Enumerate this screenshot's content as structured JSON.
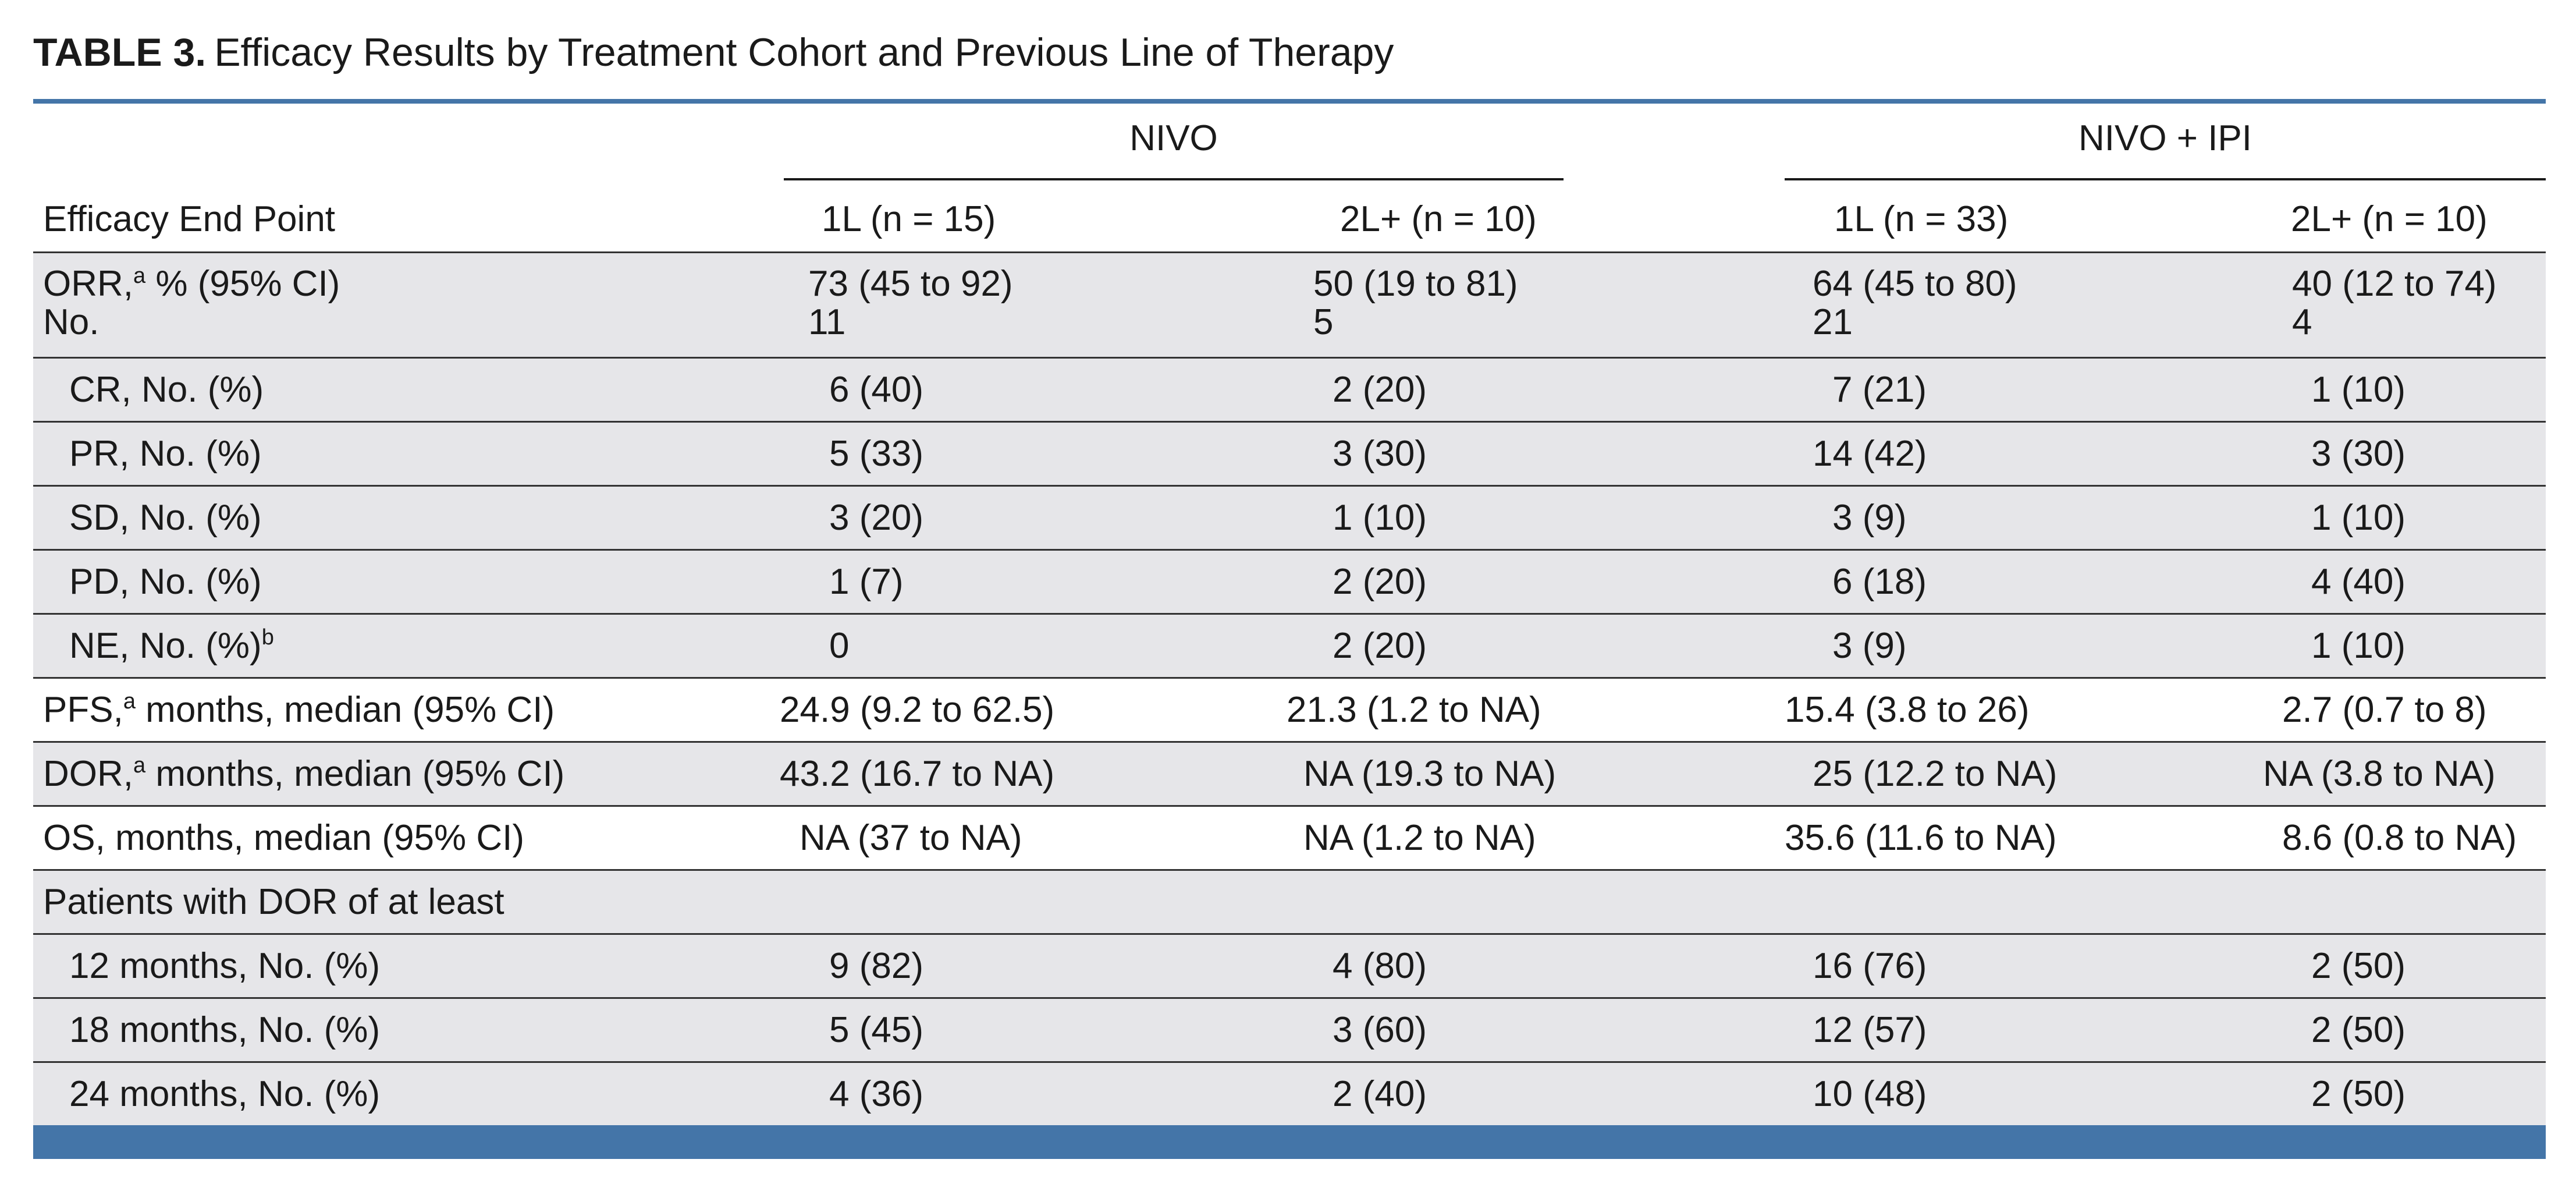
{
  "title": {
    "label": "TABLE 3.",
    "text": "Efficacy Results by Treatment Cohort and Previous Line of Therapy"
  },
  "groups": [
    "NIVO",
    "NIVO + IPI"
  ],
  "columns": [
    "Efficacy End Point",
    "1L (n = 15)",
    "2L+ (n = 10)",
    "1L (n = 33)",
    "2L+ (n = 10)"
  ],
  "rows": [
    {
      "label": "ORR,",
      "sup": "a",
      "label_suffix": " % (95% CI)",
      "label2": "No.",
      "values": [
        "73 (45 to 92)",
        "50 (19 to 81)",
        "64 (45 to 80)",
        "40 (12 to 74)"
      ],
      "values2": [
        "11",
        "5",
        "21",
        "4"
      ]
    },
    {
      "label": "CR, No. (%)",
      "values": [
        "6 (40)",
        "2 (20)",
        "7 (21)",
        "1 (10)"
      ]
    },
    {
      "label": "PR, No. (%)",
      "values": [
        "5 (33)",
        "3 (30)",
        "14 (42)",
        "3 (30)"
      ]
    },
    {
      "label": "SD, No. (%)",
      "values": [
        "3 (20)",
        "1 (10)",
        "3 (9)",
        "1 (10)"
      ]
    },
    {
      "label": "PD, No. (%)",
      "values": [
        "1 (7)",
        "2 (20)",
        "6 (18)",
        "4 (40)"
      ]
    },
    {
      "label": "NE, No. (%)",
      "sup": "b",
      "values": [
        "0",
        "2 (20)",
        "3 (9)",
        "1 (10)"
      ]
    },
    {
      "label": "PFS,",
      "sup": "a",
      "label_suffix": " months, median (95% CI)",
      "values": [
        "24.9 (9.2 to 62.5)",
        "21.3 (1.2 to NA)",
        "15.4 (3.8 to 26)",
        "2.7 (0.7 to 8)"
      ]
    },
    {
      "label": "DOR,",
      "sup": "a",
      "label_suffix": " months, median (95% CI)",
      "values": [
        "43.2 (16.7 to NA)",
        "NA (19.3 to NA)",
        "25 (12.2 to NA)",
        "NA (3.8 to NA)"
      ]
    },
    {
      "label": "OS, months, median (95% CI)",
      "values": [
        "NA (37 to NA)",
        "NA (1.2 to NA)",
        "35.6 (11.6 to NA)",
        "8.6 (0.8 to NA)"
      ]
    },
    {
      "label": "Patients with DOR of at least",
      "values": [
        "",
        "",
        "",
        ""
      ]
    },
    {
      "label": "12 months, No. (%)",
      "values": [
        "9 (82)",
        "4 (80)",
        "16 (76)",
        "2 (50)"
      ]
    },
    {
      "label": "18 months, No. (%)",
      "values": [
        "5 (45)",
        "3 (60)",
        "12 (57)",
        "2 (50)"
      ]
    },
    {
      "label": "24 months, No. (%)",
      "values": [
        "4 (36)",
        "2 (40)",
        "10 (48)",
        "2 (50)"
      ]
    }
  ]
}
